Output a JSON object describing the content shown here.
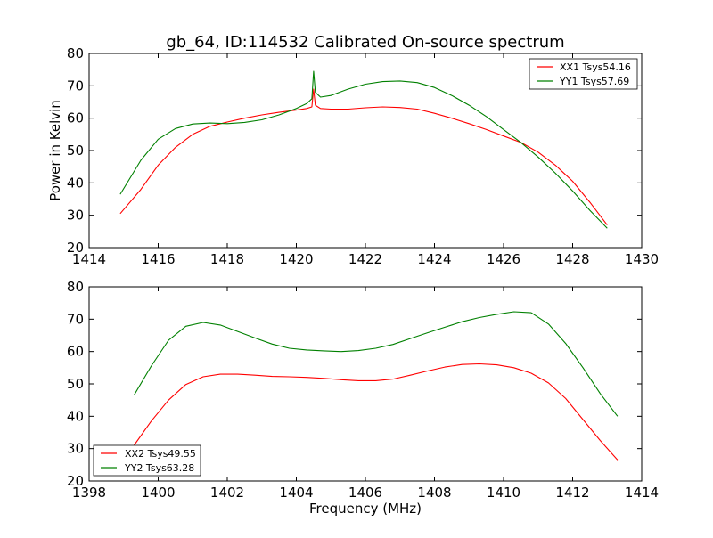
{
  "chart_data": [
    {
      "type": "line",
      "title": "gb_64, ID:114532 Calibrated On-source spectrum",
      "xlabel": "",
      "ylabel": "Power in Kelvin",
      "xlim": [
        1414,
        1430
      ],
      "ylim": [
        20,
        80
      ],
      "xticks": [
        "1414",
        "1416",
        "1418",
        "1420",
        "1422",
        "1424",
        "1426",
        "1428",
        "1430"
      ],
      "yticks": [
        "20",
        "30",
        "40",
        "50",
        "60",
        "70",
        "80"
      ],
      "legend_position": "top-right",
      "series": [
        {
          "name": "XX1 Tsys54.16",
          "color": "#ff0000",
          "x": [
            1414.9,
            1415.5,
            1416.0,
            1416.5,
            1417.0,
            1417.5,
            1418.0,
            1418.5,
            1419.0,
            1419.5,
            1420.0,
            1420.3,
            1420.45,
            1420.5,
            1420.55,
            1420.7,
            1421.0,
            1421.5,
            1422.0,
            1422.5,
            1423.0,
            1423.5,
            1424.0,
            1424.5,
            1425.0,
            1425.5,
            1426.0,
            1426.5,
            1427.0,
            1427.5,
            1428.0,
            1428.5,
            1429.0
          ],
          "y": [
            30.5,
            38.0,
            45.5,
            51.0,
            55.0,
            57.5,
            58.8,
            60.0,
            61.0,
            61.8,
            62.5,
            63.0,
            63.5,
            69.0,
            64.0,
            63.0,
            62.8,
            62.8,
            63.2,
            63.5,
            63.3,
            62.8,
            61.5,
            60.0,
            58.3,
            56.5,
            54.5,
            52.5,
            49.5,
            45.5,
            40.5,
            34.0,
            27.0
          ]
        },
        {
          "name": "YY1 Tsys57.69",
          "color": "#008000",
          "x": [
            1414.9,
            1415.5,
            1416.0,
            1416.5,
            1417.0,
            1417.5,
            1418.0,
            1418.5,
            1419.0,
            1419.5,
            1420.0,
            1420.3,
            1420.45,
            1420.5,
            1420.55,
            1420.7,
            1421.0,
            1421.5,
            1422.0,
            1422.5,
            1423.0,
            1423.5,
            1424.0,
            1424.5,
            1425.0,
            1425.5,
            1426.0,
            1426.5,
            1427.0,
            1427.5,
            1428.0,
            1428.5,
            1429.0
          ],
          "y": [
            36.5,
            47.0,
            53.5,
            56.8,
            58.2,
            58.5,
            58.3,
            58.7,
            59.5,
            61.0,
            63.0,
            64.5,
            66.0,
            74.5,
            68.0,
            66.5,
            67.0,
            69.0,
            70.5,
            71.3,
            71.5,
            71.0,
            69.5,
            67.0,
            64.0,
            60.5,
            56.5,
            52.5,
            48.0,
            43.0,
            37.5,
            31.5,
            26.0
          ]
        }
      ]
    },
    {
      "type": "line",
      "title": "",
      "xlabel": "Frequency (MHz)",
      "ylabel": "",
      "xlim": [
        1398,
        1414
      ],
      "ylim": [
        20,
        80
      ],
      "xticks": [
        "1398",
        "1400",
        "1402",
        "1404",
        "1406",
        "1408",
        "1410",
        "1412",
        "1414"
      ],
      "yticks": [
        "20",
        "30",
        "40",
        "50",
        "60",
        "70",
        "80"
      ],
      "legend_position": "bottom-left",
      "series": [
        {
          "name": "XX2 Tsys49.55",
          "color": "#ff0000",
          "x": [
            1399.3,
            1399.8,
            1400.3,
            1400.8,
            1401.3,
            1401.8,
            1402.3,
            1402.8,
            1403.3,
            1403.8,
            1404.3,
            1404.8,
            1405.3,
            1405.8,
            1406.3,
            1406.8,
            1407.3,
            1407.8,
            1408.3,
            1408.8,
            1409.3,
            1409.8,
            1410.3,
            1410.8,
            1411.3,
            1411.8,
            1412.3,
            1412.8,
            1413.3
          ],
          "y": [
            31.0,
            38.5,
            45.0,
            49.8,
            52.2,
            53.0,
            53.0,
            52.7,
            52.3,
            52.2,
            52.0,
            51.7,
            51.3,
            51.0,
            51.0,
            51.5,
            52.7,
            54.0,
            55.2,
            56.0,
            56.2,
            55.9,
            55.0,
            53.3,
            50.3,
            45.5,
            39.0,
            32.5,
            26.5
          ]
        },
        {
          "name": "YY2 Tsys63.28",
          "color": "#008000",
          "x": [
            1399.3,
            1399.8,
            1400.3,
            1400.8,
            1401.3,
            1401.8,
            1402.3,
            1402.8,
            1403.3,
            1403.8,
            1404.3,
            1404.8,
            1405.3,
            1405.8,
            1406.3,
            1406.8,
            1407.3,
            1407.8,
            1408.3,
            1408.8,
            1409.3,
            1409.8,
            1410.3,
            1410.8,
            1411.3,
            1411.8,
            1412.3,
            1412.8,
            1413.3
          ],
          "y": [
            46.5,
            55.5,
            63.5,
            67.8,
            69.0,
            68.2,
            66.2,
            64.2,
            62.3,
            61.0,
            60.5,
            60.2,
            60.0,
            60.3,
            61.0,
            62.2,
            64.0,
            65.8,
            67.5,
            69.2,
            70.5,
            71.5,
            72.3,
            72.0,
            68.5,
            62.5,
            55.0,
            47.0,
            40.0
          ]
        }
      ]
    }
  ]
}
